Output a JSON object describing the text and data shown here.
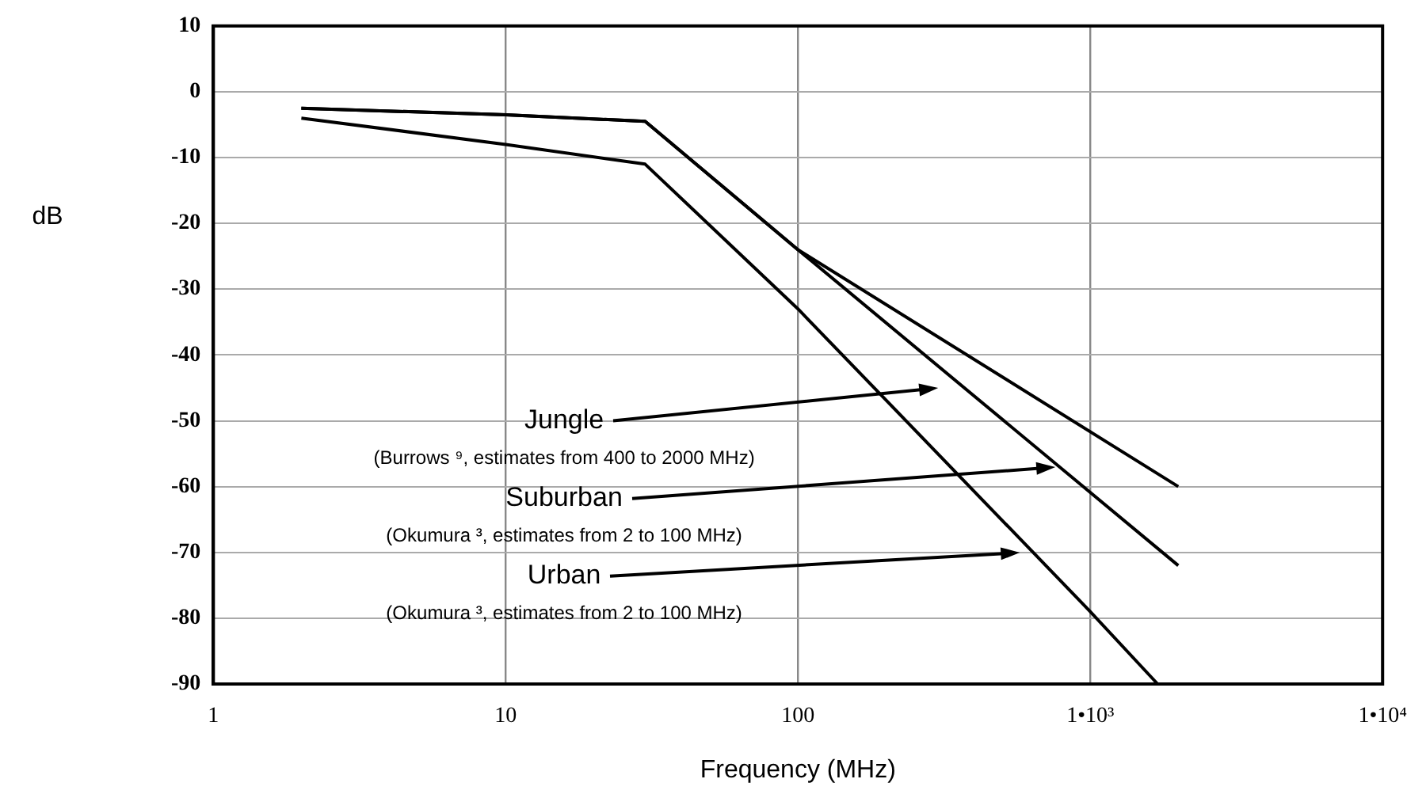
{
  "chart_data": {
    "type": "line",
    "xlabel": "Frequency (MHz)",
    "ylabel": "dB",
    "log": "x",
    "xlim": [
      1,
      10000
    ],
    "xticks": [
      1,
      10,
      100,
      {
        "value": 1000,
        "label": "1•10³"
      },
      {
        "value": 10000,
        "label": "1•10⁴"
      }
    ],
    "ylim": [
      -90,
      10
    ],
    "yticks": [
      -90,
      -80,
      -70,
      -60,
      -50,
      -40,
      -30,
      -20,
      -10,
      0,
      10
    ],
    "grid": true,
    "legend": false,
    "marker": "none",
    "line_style": "solid",
    "series": [
      {
        "color": "#000000",
        "x": [
          2,
          10,
          30,
          100,
          2000
        ],
        "values": [
          -2.5,
          -3.5,
          -4.5,
          -24,
          -60
        ]
      },
      {
        "color": "#000000",
        "x": [
          2,
          10,
          30,
          100,
          2000
        ],
        "values": [
          -2.5,
          -3.5,
          -4.5,
          -24,
          -72
        ]
      },
      {
        "color": "#000000",
        "x": [
          2,
          10,
          30,
          100,
          1000,
          1700
        ],
        "values": [
          -4,
          -8,
          -11,
          -33,
          -79,
          -90
        ]
      }
    ],
    "annotations": [
      "Jungle",
      "(Burrows ⁹, estimates from 400 to 2000 MHz)",
      "Suburban",
      "(Okumura ³, estimates from 2 to 100 MHz)",
      "Urban",
      "(Okumura ³, estimates from 2 to 100 MHz)"
    ]
  }
}
